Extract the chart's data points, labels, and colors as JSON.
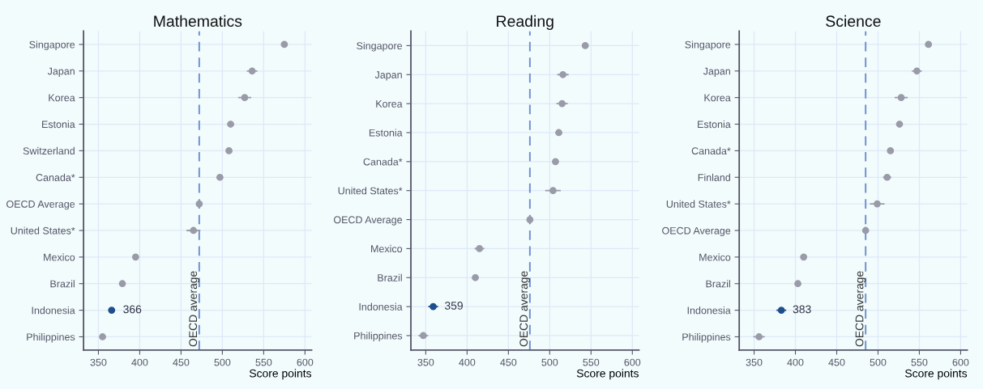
{
  "chart_data": [
    {
      "type": "scatter",
      "orientation": "horizontal",
      "title": "Mathematics",
      "xlabel": "Score points",
      "categories": [
        "Singapore",
        "Japan",
        "Korea",
        "Estonia",
        "Switzerland",
        "Canada*",
        "OECD Average",
        "United States*",
        "Mexico",
        "Brazil",
        "Indonesia",
        "Philippines"
      ],
      "series": [
        {
          "values": [
            575,
            536,
            527,
            510,
            508,
            497,
            472,
            465,
            395,
            379,
            366,
            355
          ],
          "errors": [
            3,
            5.5,
            7,
            3,
            3,
            3,
            1,
            7.5,
            3,
            3,
            3,
            3
          ],
          "colors": [
            "#9a9ba8",
            "#9a9ba8",
            "#9a9ba8",
            "#9a9ba8",
            "#9a9ba8",
            "#9a9ba8",
            "#9a9ba8",
            "#9a9ba8",
            "#9a9ba8",
            "#9a9ba8",
            "#1f4e8c",
            "#9a9ba8"
          ],
          "value_labels": [
            null,
            null,
            null,
            null,
            null,
            null,
            null,
            null,
            null,
            null,
            "366",
            null
          ]
        }
      ],
      "xlim": [
        332,
        608
      ],
      "xticks": [
        350,
        400,
        450,
        500,
        550,
        600
      ],
      "ref_lines": [
        {
          "axis": "x",
          "value": 472,
          "label": "OECD average",
          "color": "#6f8fd0",
          "line_style": "dashed"
        }
      ],
      "grid": true,
      "marker": "circle"
    },
    {
      "type": "scatter",
      "orientation": "horizontal",
      "title": "Reading",
      "xlabel": "Score points",
      "categories": [
        "Singapore",
        "Japan",
        "Korea",
        "Estonia",
        "Canada*",
        "United States*",
        "OECD Average",
        "Mexico",
        "Brazil",
        "Indonesia",
        "Philippines"
      ],
      "series": [
        {
          "values": [
            543,
            516,
            515,
            511,
            507,
            504,
            476,
            415,
            410,
            359,
            347
          ],
          "errors": [
            3,
            6,
            6,
            3,
            3,
            8.5,
            1,
            5,
            3,
            5,
            5
          ],
          "colors": [
            "#9a9ba8",
            "#9a9ba8",
            "#9a9ba8",
            "#9a9ba8",
            "#9a9ba8",
            "#9a9ba8",
            "#9a9ba8",
            "#9a9ba8",
            "#9a9ba8",
            "#1f4e8c",
            "#9a9ba8"
          ],
          "value_labels": [
            null,
            null,
            null,
            null,
            null,
            null,
            null,
            null,
            null,
            "359",
            null
          ]
        }
      ],
      "xlim": [
        332,
        608
      ],
      "xticks": [
        350,
        400,
        450,
        500,
        550,
        600
      ],
      "ref_lines": [
        {
          "axis": "x",
          "value": 476,
          "label": "OECD average",
          "color": "#6f8fd0",
          "line_style": "dashed"
        }
      ],
      "grid": true,
      "marker": "circle"
    },
    {
      "type": "scatter",
      "orientation": "horizontal",
      "title": "Science",
      "xlabel": "Score points",
      "categories": [
        "Singapore",
        "Japan",
        "Korea",
        "Estonia",
        "Canada*",
        "Finland",
        "United States*",
        "OECD Average",
        "Mexico",
        "Brazil",
        "Indonesia",
        "Philippines"
      ],
      "series": [
        {
          "values": [
            561,
            547,
            528,
            526,
            515,
            511,
            499,
            485,
            410,
            403,
            383,
            356
          ],
          "errors": [
            3,
            5,
            7,
            3,
            3,
            4,
            8,
            1,
            3,
            3,
            5,
            6
          ],
          "colors": [
            "#9a9ba8",
            "#9a9ba8",
            "#9a9ba8",
            "#9a9ba8",
            "#9a9ba8",
            "#9a9ba8",
            "#9a9ba8",
            "#9a9ba8",
            "#9a9ba8",
            "#9a9ba8",
            "#1f4e8c",
            "#9a9ba8"
          ],
          "value_labels": [
            null,
            null,
            null,
            null,
            null,
            null,
            null,
            null,
            null,
            null,
            "383",
            null
          ]
        }
      ],
      "xlim": [
        332,
        608
      ],
      "xticks": [
        350,
        400,
        450,
        500,
        550,
        600
      ],
      "ref_lines": [
        {
          "axis": "x",
          "value": 485,
          "label": "OECD average",
          "color": "#6f8fd0",
          "line_style": "dashed"
        }
      ],
      "grid": true,
      "marker": "circle"
    }
  ]
}
